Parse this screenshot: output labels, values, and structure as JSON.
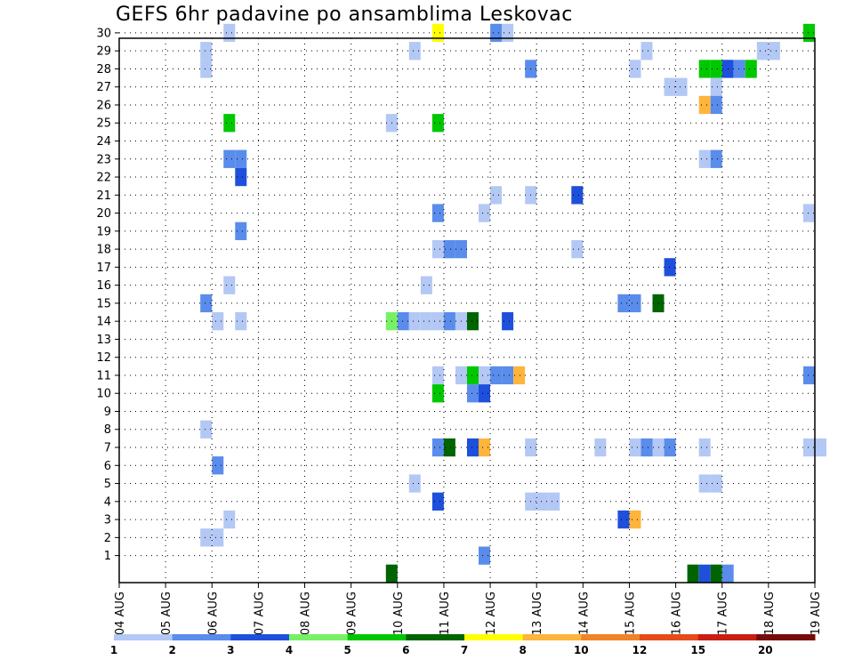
{
  "chart_data": {
    "type": "heatmap",
    "title": "GEFS 6hr padavine po ansamblima Leskovac",
    "xlabel": "",
    "ylabel": "",
    "x_tick_labels": [
      "04 AUG",
      "05 AUG",
      "06 AUG",
      "07 AUG",
      "08 AUG",
      "09 AUG",
      "10 AUG",
      "11 AUG",
      "12 AUG",
      "13 AUG",
      "14 AUG",
      "15 AUG",
      "16 AUG",
      "17 AUG",
      "18 AUG",
      "19 AUG"
    ],
    "y_tick_labels": [
      "1",
      "2",
      "3",
      "4",
      "5",
      "6",
      "7",
      "8",
      "9",
      "10",
      "11",
      "12",
      "13",
      "14",
      "15",
      "16",
      "17",
      "18",
      "19",
      "20",
      "21",
      "22",
      "23",
      "24",
      "25",
      "26",
      "27",
      "28",
      "29",
      "30"
    ],
    "x_unit": "day offset from 04 AUG 00Z, 6-hour steps",
    "ylim": [
      0,
      30
    ],
    "xlim": [
      0,
      15
    ],
    "grid": true,
    "colorbar": {
      "labels": [
        "1",
        "2",
        "3",
        "4",
        "5",
        "6",
        "7",
        "8",
        "10",
        "12",
        "15",
        "20"
      ],
      "colors": [
        "#b4c8f5",
        "#5a8ceb",
        "#1e50dc",
        "#78f064",
        "#00c800",
        "#006400",
        "#ffff00",
        "#ffb43c",
        "#f08228",
        "#e64b19",
        "#c81e14",
        "#780a0a"
      ]
    },
    "cells": [
      {
        "t": 2.25,
        "m": 30,
        "c": 1
      },
      {
        "t": 6.75,
        "m": 30,
        "c": 7
      },
      {
        "t": 8.0,
        "m": 30,
        "c": 2
      },
      {
        "t": 8.25,
        "m": 30,
        "c": 1
      },
      {
        "t": 14.75,
        "m": 30,
        "c": 5
      },
      {
        "t": 1.75,
        "m": 29,
        "c": 1
      },
      {
        "t": 6.25,
        "m": 29,
        "c": 1
      },
      {
        "t": 11.25,
        "m": 29,
        "c": 1
      },
      {
        "t": 13.75,
        "m": 29,
        "c": 1
      },
      {
        "t": 14.0,
        "m": 29,
        "c": 1
      },
      {
        "t": 1.75,
        "m": 28,
        "c": 1
      },
      {
        "t": 8.75,
        "m": 28,
        "c": 2
      },
      {
        "t": 11.0,
        "m": 28,
        "c": 1
      },
      {
        "t": 12.5,
        "m": 28,
        "c": 5
      },
      {
        "t": 12.75,
        "m": 28,
        "c": 5
      },
      {
        "t": 13.0,
        "m": 28,
        "c": 3
      },
      {
        "t": 13.25,
        "m": 28,
        "c": 2
      },
      {
        "t": 13.5,
        "m": 28,
        "c": 5
      },
      {
        "t": 11.75,
        "m": 27,
        "c": 1
      },
      {
        "t": 12.0,
        "m": 27,
        "c": 1
      },
      {
        "t": 12.75,
        "m": 27,
        "c": 1
      },
      {
        "t": 12.5,
        "m": 26,
        "c": 8
      },
      {
        "t": 12.75,
        "m": 26,
        "c": 2
      },
      {
        "t": 2.25,
        "m": 25,
        "c": 5
      },
      {
        "t": 5.75,
        "m": 25,
        "c": 1
      },
      {
        "t": 6.75,
        "m": 25,
        "c": 5
      },
      {
        "t": 2.25,
        "m": 23,
        "c": 2
      },
      {
        "t": 2.5,
        "m": 23,
        "c": 2
      },
      {
        "t": 12.5,
        "m": 23,
        "c": 1
      },
      {
        "t": 12.75,
        "m": 23,
        "c": 2
      },
      {
        "t": 2.5,
        "m": 22,
        "c": 3
      },
      {
        "t": 8.0,
        "m": 21,
        "c": 1
      },
      {
        "t": 8.75,
        "m": 21,
        "c": 1
      },
      {
        "t": 9.75,
        "m": 21,
        "c": 3
      },
      {
        "t": 14.75,
        "m": 20,
        "c": 1
      },
      {
        "t": 6.75,
        "m": 20,
        "c": 2
      },
      {
        "t": 7.75,
        "m": 20,
        "c": 1
      },
      {
        "t": 2.5,
        "m": 19,
        "c": 2
      },
      {
        "t": 6.75,
        "m": 18,
        "c": 1
      },
      {
        "t": 7.0,
        "m": 18,
        "c": 2
      },
      {
        "t": 7.25,
        "m": 18,
        "c": 2
      },
      {
        "t": 9.75,
        "m": 18,
        "c": 1
      },
      {
        "t": 11.75,
        "m": 17,
        "c": 3
      },
      {
        "t": 2.25,
        "m": 16,
        "c": 1
      },
      {
        "t": 6.5,
        "m": 16,
        "c": 1
      },
      {
        "t": 1.75,
        "m": 15,
        "c": 2
      },
      {
        "t": 10.75,
        "m": 15,
        "c": 2
      },
      {
        "t": 11.0,
        "m": 15,
        "c": 2
      },
      {
        "t": 11.5,
        "m": 15,
        "c": 6
      },
      {
        "t": 2.0,
        "m": 14,
        "c": 1
      },
      {
        "t": 2.5,
        "m": 14,
        "c": 1
      },
      {
        "t": 5.75,
        "m": 14,
        "c": 4
      },
      {
        "t": 6.0,
        "m": 14,
        "c": 2
      },
      {
        "t": 6.25,
        "m": 14,
        "c": 1
      },
      {
        "t": 6.5,
        "m": 14,
        "c": 1
      },
      {
        "t": 6.75,
        "m": 14,
        "c": 1
      },
      {
        "t": 7.0,
        "m": 14,
        "c": 2
      },
      {
        "t": 7.25,
        "m": 14,
        "c": 1
      },
      {
        "t": 7.5,
        "m": 14,
        "c": 6
      },
      {
        "t": 8.25,
        "m": 14,
        "c": 3
      },
      {
        "t": 6.75,
        "m": 11,
        "c": 1
      },
      {
        "t": 7.25,
        "m": 11,
        "c": 1
      },
      {
        "t": 7.5,
        "m": 11,
        "c": 5
      },
      {
        "t": 7.75,
        "m": 11,
        "c": 1
      },
      {
        "t": 8.0,
        "m": 11,
        "c": 2
      },
      {
        "t": 8.25,
        "m": 11,
        "c": 2
      },
      {
        "t": 8.5,
        "m": 11,
        "c": 8
      },
      {
        "t": 14.75,
        "m": 11,
        "c": 2
      },
      {
        "t": 6.75,
        "m": 10,
        "c": 5
      },
      {
        "t": 7.5,
        "m": 10,
        "c": 2
      },
      {
        "t": 7.75,
        "m": 10,
        "c": 3
      },
      {
        "t": 1.75,
        "m": 8,
        "c": 1
      },
      {
        "t": 6.75,
        "m": 7,
        "c": 2
      },
      {
        "t": 7.0,
        "m": 7,
        "c": 6
      },
      {
        "t": 7.5,
        "m": 7,
        "c": 3
      },
      {
        "t": 7.75,
        "m": 7,
        "c": 8
      },
      {
        "t": 8.75,
        "m": 7,
        "c": 1
      },
      {
        "t": 10.25,
        "m": 7,
        "c": 1
      },
      {
        "t": 11.0,
        "m": 7,
        "c": 1
      },
      {
        "t": 11.25,
        "m": 7,
        "c": 2
      },
      {
        "t": 11.5,
        "m": 7,
        "c": 1
      },
      {
        "t": 11.75,
        "m": 7,
        "c": 2
      },
      {
        "t": 12.5,
        "m": 7,
        "c": 1
      },
      {
        "t": 14.75,
        "m": 7,
        "c": 1
      },
      {
        "t": 15.0,
        "m": 7,
        "c": 1
      },
      {
        "t": 2.0,
        "m": 6,
        "c": 2
      },
      {
        "t": 6.25,
        "m": 5,
        "c": 1
      },
      {
        "t": 12.5,
        "m": 5,
        "c": 1
      },
      {
        "t": 12.75,
        "m": 5,
        "c": 1
      },
      {
        "t": 6.75,
        "m": 4,
        "c": 3
      },
      {
        "t": 8.75,
        "m": 4,
        "c": 1
      },
      {
        "t": 9.0,
        "m": 4,
        "c": 1
      },
      {
        "t": 9.25,
        "m": 4,
        "c": 1
      },
      {
        "t": 2.25,
        "m": 3,
        "c": 1
      },
      {
        "t": 10.75,
        "m": 3,
        "c": 3
      },
      {
        "t": 11.0,
        "m": 3,
        "c": 8
      },
      {
        "t": 1.75,
        "m": 2,
        "c": 1
      },
      {
        "t": 2.0,
        "m": 2,
        "c": 1
      },
      {
        "t": 7.75,
        "m": 1,
        "c": 2
      },
      {
        "t": 5.75,
        "m": 0,
        "c": 6
      },
      {
        "t": 12.25,
        "m": 0,
        "c": 6
      },
      {
        "t": 12.5,
        "m": 0,
        "c": 3
      },
      {
        "t": 12.75,
        "m": 0,
        "c": 6
      },
      {
        "t": 13.0,
        "m": 0,
        "c": 2
      }
    ]
  }
}
